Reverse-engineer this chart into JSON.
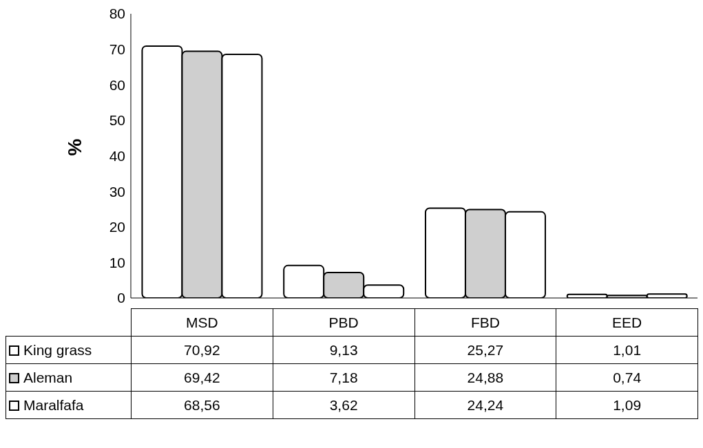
{
  "chart_data": {
    "type": "bar",
    "ylabel": "%",
    "categories": [
      "MSD",
      "PBD",
      "FBD",
      "EED"
    ],
    "series": [
      {
        "name": "King grass",
        "color": "#ffffff",
        "values": [
          70.92,
          9.13,
          25.27,
          1.01
        ],
        "value_labels": [
          "70,92",
          "9,13",
          "25,27",
          "1,01"
        ]
      },
      {
        "name": "Aleman",
        "color": "#cfcfcf",
        "values": [
          69.42,
          7.18,
          24.88,
          0.74
        ],
        "value_labels": [
          "69,42",
          "7,18",
          "24,88",
          "0,74"
        ]
      },
      {
        "name": "Maralfafa",
        "color": "#ffffff",
        "values": [
          68.56,
          3.62,
          24.24,
          1.09
        ],
        "value_labels": [
          "68,56",
          "3,62",
          "24,24",
          "1,09"
        ]
      }
    ],
    "ylim": [
      0,
      80
    ],
    "yticks": [
      0,
      10,
      20,
      30,
      40,
      50,
      60,
      70,
      80
    ],
    "grid": false,
    "legend": "bottom left"
  }
}
